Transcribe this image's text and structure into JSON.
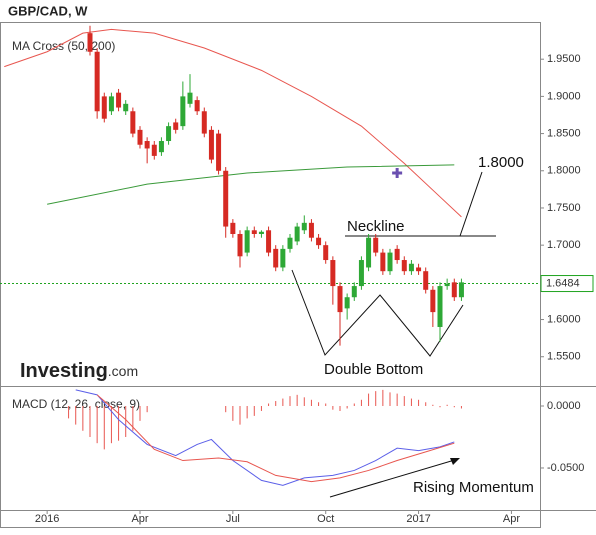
{
  "chart_data": [
    {
      "type": "candlestick",
      "title": "GBP/CAD, W",
      "indicator_label": "MA Cross (50, 200)",
      "brand": "Investing",
      "brand_suffix": ".com",
      "x": [
        6,
        7,
        8,
        9,
        10,
        11,
        12,
        13,
        14,
        15,
        16,
        17,
        18,
        19,
        20,
        21,
        22,
        23,
        24,
        25,
        26,
        27,
        28,
        29,
        30,
        31,
        32,
        33,
        34,
        35,
        36,
        37,
        38,
        39,
        40,
        41,
        42,
        43,
        44,
        45,
        46,
        47,
        48,
        49,
        50,
        51,
        52,
        53,
        54,
        55,
        56,
        57,
        58
      ],
      "opens": [
        1.985,
        1.96,
        1.9,
        1.88,
        1.905,
        1.88,
        1.88,
        1.855,
        1.84,
        1.835,
        1.825,
        1.84,
        1.865,
        1.86,
        1.89,
        1.895,
        1.88,
        1.855,
        1.85,
        1.8,
        1.73,
        1.715,
        1.69,
        1.72,
        1.715,
        1.72,
        1.695,
        1.67,
        1.695,
        1.705,
        1.72,
        1.73,
        1.71,
        1.7,
        1.68,
        1.645,
        1.615,
        1.63,
        1.645,
        1.67,
        1.71,
        1.69,
        1.665,
        1.695,
        1.68,
        1.665,
        1.67,
        1.665,
        1.64,
        1.59,
        1.645,
        1.65,
        1.63
      ],
      "highs": [
        1.995,
        1.965,
        1.905,
        1.905,
        1.91,
        1.895,
        1.885,
        1.86,
        1.845,
        1.84,
        1.845,
        1.865,
        1.87,
        1.92,
        1.93,
        1.9,
        1.885,
        1.86,
        1.855,
        1.805,
        1.735,
        1.72,
        1.725,
        1.725,
        1.72,
        1.725,
        1.7,
        1.7,
        1.715,
        1.73,
        1.74,
        1.735,
        1.715,
        1.705,
        1.685,
        1.65,
        1.635,
        1.65,
        1.685,
        1.715,
        1.715,
        1.695,
        1.695,
        1.7,
        1.685,
        1.68,
        1.675,
        1.67,
        1.645,
        1.65,
        1.655,
        1.655,
        1.655
      ],
      "lows": [
        1.955,
        1.87,
        1.865,
        1.875,
        1.88,
        1.875,
        1.845,
        1.83,
        1.81,
        1.815,
        1.82,
        1.835,
        1.85,
        1.855,
        1.885,
        1.875,
        1.845,
        1.81,
        1.795,
        1.71,
        1.71,
        1.67,
        1.685,
        1.71,
        1.71,
        1.685,
        1.665,
        1.665,
        1.69,
        1.7,
        1.715,
        1.705,
        1.695,
        1.675,
        1.62,
        1.565,
        1.6,
        1.625,
        1.64,
        1.665,
        1.685,
        1.66,
        1.66,
        1.675,
        1.66,
        1.66,
        1.66,
        1.635,
        1.59,
        1.57,
        1.64,
        1.625,
        1.625
      ],
      "closes": [
        1.96,
        1.88,
        1.87,
        1.9,
        1.885,
        1.89,
        1.85,
        1.835,
        1.83,
        1.82,
        1.84,
        1.86,
        1.855,
        1.9,
        1.905,
        1.88,
        1.85,
        1.815,
        1.8,
        1.725,
        1.715,
        1.685,
        1.72,
        1.715,
        1.718,
        1.69,
        1.67,
        1.695,
        1.71,
        1.725,
        1.73,
        1.71,
        1.7,
        1.68,
        1.645,
        1.61,
        1.63,
        1.645,
        1.68,
        1.71,
        1.69,
        1.665,
        1.69,
        1.68,
        1.665,
        1.675,
        1.665,
        1.64,
        1.61,
        1.645,
        1.648,
        1.63,
        1.65
      ],
      "up_color": "#2ea836",
      "down_color": "#d62a23",
      "lines": [
        {
          "color": "#e8564f",
          "x": [
            -6,
            0,
            5,
            9,
            15,
            22,
            30,
            37,
            44,
            50,
            55,
            58
          ],
          "values": [
            1.94,
            1.96,
            1.985,
            1.99,
            1.985,
            1.965,
            1.935,
            1.9,
            1.86,
            1.81,
            1.765,
            1.738
          ]
        },
        {
          "color": "#3a9a3a",
          "x": [
            0,
            14,
            28,
            42,
            57
          ],
          "values": [
            1.755,
            1.782,
            1.797,
            1.805,
            1.808
          ]
        }
      ],
      "cross_marker": {
        "x": 49,
        "y": 1.797,
        "color": "#6a4fb0"
      },
      "last_price": 1.6484,
      "last_price_color": "#1fa31f",
      "annotations": [
        "1.8000",
        "Neckline",
        "Double Bottom"
      ],
      "xlim": [
        -6.6,
        69
      ],
      "ylim": [
        1.512,
        2.0
      ],
      "xticks": [
        {
          "value": 0,
          "label": "2016"
        },
        {
          "value": 13,
          "label": "Apr"
        },
        {
          "value": 26,
          "label": "Jul"
        },
        {
          "value": 39,
          "label": "Oct"
        },
        {
          "value": 52,
          "label": "2017"
        },
        {
          "value": 65,
          "label": "Apr"
        }
      ],
      "yticks": [
        {
          "value": 1.55,
          "label": "1.5500"
        },
        {
          "value": 1.6,
          "label": "1.6000"
        },
        {
          "value": 1.65,
          "label": "1.6500"
        },
        {
          "value": 1.7,
          "label": "1.7000"
        },
        {
          "value": 1.75,
          "label": "1.7500"
        },
        {
          "value": 1.8,
          "label": "1.8000"
        },
        {
          "value": 1.85,
          "label": "1.8500"
        },
        {
          "value": 1.9,
          "label": "1.9000"
        },
        {
          "value": 1.95,
          "label": "1.9500"
        }
      ]
    },
    {
      "type": "macd",
      "title": "MACD (12, 26, close, 9)",
      "annotation": "Rising Momentum",
      "series": [
        {
          "color": "#5b5fe8",
          "x": [
            4,
            7,
            10,
            14,
            18,
            21,
            23,
            26,
            30,
            33,
            36,
            40,
            43,
            46,
            49,
            52,
            55,
            57
          ],
          "values": [
            0.013,
            0.009,
            -0.011,
            -0.031,
            -0.04,
            -0.031,
            -0.027,
            -0.044,
            -0.06,
            -0.064,
            -0.058,
            -0.056,
            -0.052,
            -0.044,
            -0.034,
            -0.036,
            -0.033,
            -0.029
          ]
        },
        {
          "color": "#e8564f",
          "x": [
            7,
            11,
            15,
            19,
            24,
            28,
            32,
            37,
            41,
            45,
            49,
            53,
            57
          ],
          "values": [
            0.009,
            -0.011,
            -0.035,
            -0.044,
            -0.042,
            -0.045,
            -0.056,
            -0.061,
            -0.058,
            -0.052,
            -0.044,
            -0.037,
            -0.03
          ]
        }
      ],
      "histogram": {
        "color": "#e8564f",
        "x": [
          3,
          4,
          5,
          6,
          7,
          8,
          9,
          10,
          11,
          12,
          13,
          14,
          25,
          26,
          27,
          28,
          29,
          30,
          31,
          32,
          33,
          34,
          35,
          36,
          37,
          38,
          39,
          40,
          41,
          42,
          43,
          44,
          45,
          46,
          47,
          48,
          49,
          50,
          51,
          52,
          53,
          54,
          55,
          56,
          57,
          58
        ],
        "values": [
          -0.01,
          -0.015,
          -0.02,
          -0.025,
          -0.03,
          -0.035,
          -0.03,
          -0.028,
          -0.025,
          -0.02,
          -0.012,
          -0.005,
          -0.005,
          -0.012,
          -0.015,
          -0.01,
          -0.008,
          -0.004,
          0.002,
          0.004,
          0.006,
          0.008,
          0.009,
          0.007,
          0.005,
          0.003,
          0.002,
          -0.003,
          -0.004,
          -0.002,
          0.002,
          0.005,
          0.01,
          0.012,
          0.013,
          0.011,
          0.01,
          0.008,
          0.006,
          0.005,
          0.003,
          0.001,
          -0.001,
          0.001,
          -0.001,
          -0.002
        ]
      },
      "xlim": [
        -6.6,
        69
      ],
      "ylim": [
        -0.0839,
        0.0129
      ],
      "yticks": [
        {
          "value": 0,
          "label": "0.0000"
        },
        {
          "value": -0.05,
          "label": "-0.0500"
        }
      ]
    }
  ]
}
